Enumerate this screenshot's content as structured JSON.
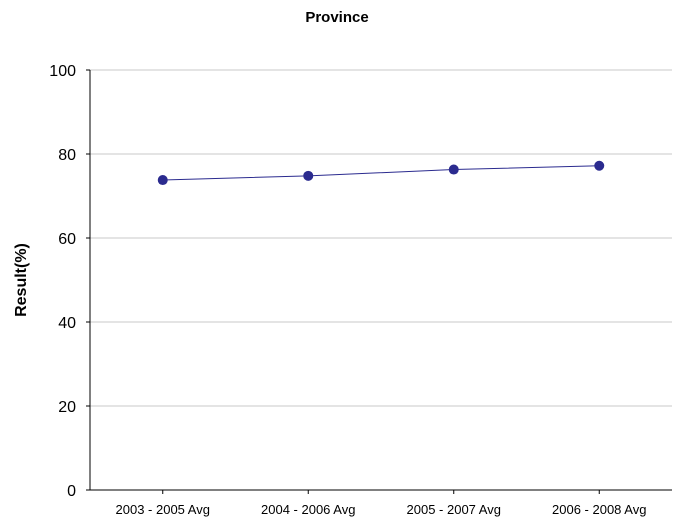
{
  "chart_data": {
    "type": "line",
    "title": "Province",
    "xlabel": "",
    "ylabel": "Result(%)",
    "categories": [
      "2003 - 2005 Avg",
      "2004 - 2006 Avg",
      "2005 - 2007 Avg",
      "2006 - 2008 Avg"
    ],
    "series": [
      {
        "values": [
          73.8,
          74.8,
          76.3,
          77.2
        ]
      }
    ],
    "ylim": [
      0,
      100
    ],
    "yticks": [
      "0",
      "20",
      "40",
      "60",
      "80",
      "100"
    ],
    "grid": true,
    "legend": "none",
    "colors": {
      "line": "#2b2b8f",
      "marker": "#2b2b8f",
      "grid": "#c8c8c8",
      "axis": "#000000"
    }
  }
}
